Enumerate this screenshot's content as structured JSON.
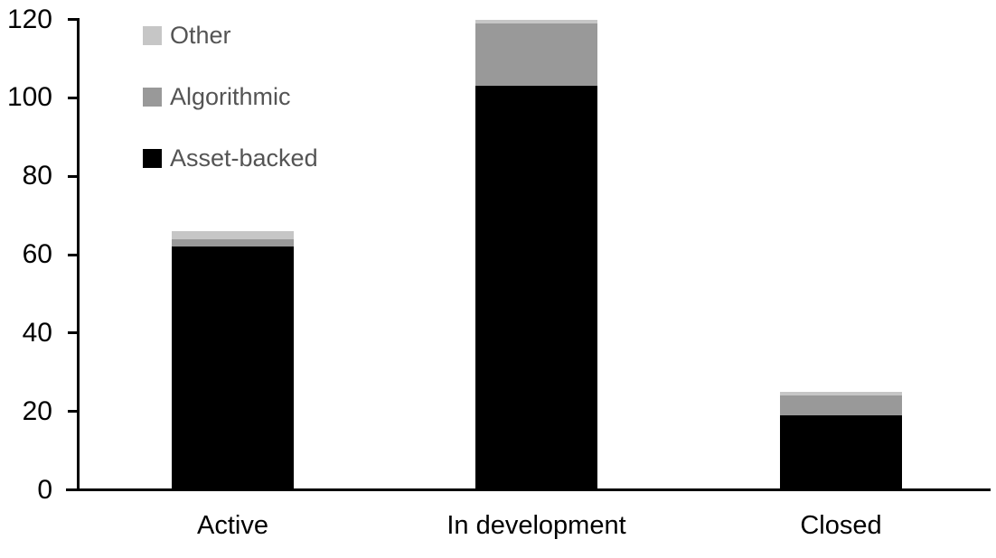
{
  "chart_data": {
    "type": "bar",
    "stacked": true,
    "title": "",
    "xlabel": "",
    "ylabel": "",
    "categories": [
      "Active",
      "In development",
      "Closed"
    ],
    "series": [
      {
        "name": "Asset-backed",
        "color": "#000000",
        "values": [
          62,
          103,
          19
        ]
      },
      {
        "name": "Algorithmic",
        "color": "#999999",
        "values": [
          2,
          16,
          5
        ]
      },
      {
        "name": "Other",
        "color": "#c6c6c6",
        "values": [
          2,
          1,
          1
        ]
      }
    ],
    "totals": [
      66,
      120,
      25
    ],
    "ylim": [
      0,
      120
    ],
    "yticks": [
      0,
      20,
      40,
      60,
      80,
      100,
      120
    ],
    "grid": false,
    "legend_position": "top-left",
    "legend_order": [
      "Other",
      "Algorithmic",
      "Asset-backed"
    ],
    "axis_color": "#000000",
    "tick_label_color": "#000000",
    "legend_text_color": "#545454",
    "background_color": "#ffffff"
  }
}
